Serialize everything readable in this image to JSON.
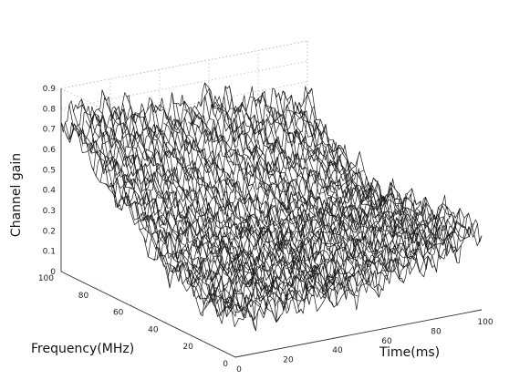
{
  "chart_data": {
    "type": "surface",
    "zlabel": "Channel gain",
    "ylabel": "Frequency(MHz)",
    "xlabel": "Time(ms)",
    "zlim": [
      0,
      0.9
    ],
    "ylim": [
      0,
      100
    ],
    "xlim": [
      0,
      100
    ],
    "z_ticks": [
      "0",
      "0.1",
      "0.2",
      "0.3",
      "0.4",
      "0.5",
      "0.6",
      "0.7",
      "0.8",
      "0.9"
    ],
    "y_ticks": [
      "0",
      "20",
      "40",
      "60",
      "80",
      "100"
    ],
    "x_ticks": [
      "0",
      "20",
      "40",
      "60",
      "80",
      "100"
    ],
    "grid": true,
    "time_ms": [
      0,
      10,
      20,
      30,
      40,
      50,
      60,
      70,
      80,
      90,
      100
    ],
    "frequency_mhz": [
      0,
      20,
      40,
      60,
      80,
      100
    ],
    "gain": [
      [
        0.2,
        0.22,
        0.18,
        0.25,
        0.2,
        0.24,
        0.22,
        0.3,
        0.28,
        0.35,
        0.4
      ],
      [
        0.22,
        0.18,
        0.28,
        0.2,
        0.26,
        0.2,
        0.3,
        0.26,
        0.34,
        0.32,
        0.38
      ],
      [
        0.28,
        0.26,
        0.3,
        0.24,
        0.3,
        0.26,
        0.28,
        0.32,
        0.3,
        0.36,
        0.34
      ],
      [
        0.45,
        0.4,
        0.38,
        0.34,
        0.32,
        0.3,
        0.34,
        0.3,
        0.33,
        0.35,
        0.32
      ],
      [
        0.6,
        0.58,
        0.55,
        0.52,
        0.5,
        0.48,
        0.5,
        0.46,
        0.44,
        0.45,
        0.42
      ],
      [
        0.75,
        0.78,
        0.76,
        0.72,
        0.7,
        0.68,
        0.72,
        0.66,
        0.65,
        0.62,
        0.6
      ]
    ]
  }
}
